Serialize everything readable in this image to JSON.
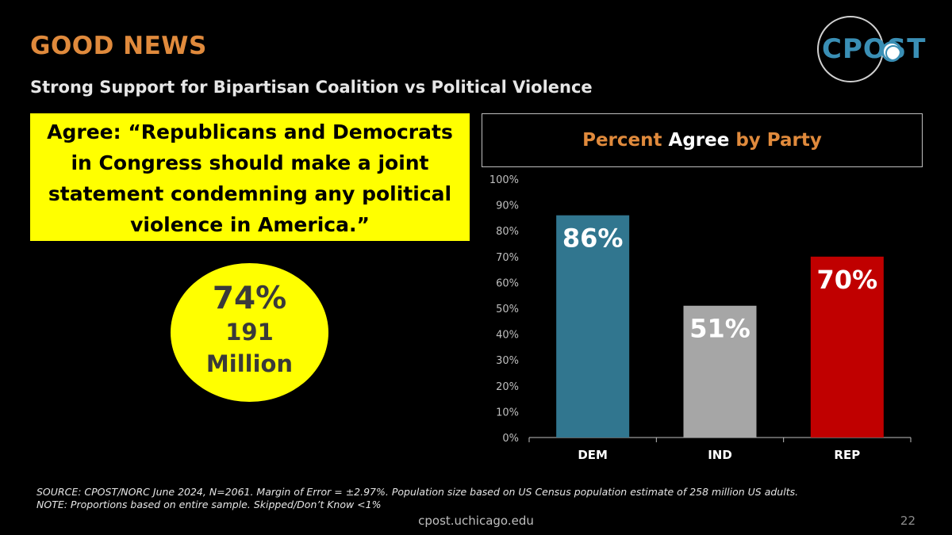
{
  "slide": {
    "heading": "GOOD NEWS",
    "subheading": "Strong Support for Bipartisan Coalition vs Political Violence",
    "quote_lines": [
      "Agree: “Republicans and Democrats",
      "in Congress should make a joint",
      "statement condemning any political",
      "violence in America.”"
    ],
    "stat": {
      "percent": "74%",
      "number": "191",
      "unit": "Million"
    },
    "logo_text": "CPOST",
    "source_line1": "SOURCE: CPOST/NORC June 2024, N=2061. Margin of Error = ±2.97%. Population size based on US Census population estimate of 258 million US adults.",
    "source_line2": "NOTE: Proportions based on entire sample. Skipped/Don’t Know <1%",
    "footer_url": "cpost.uchicago.edu",
    "page_number": "22"
  },
  "chart_title": {
    "part1": "Percent ",
    "part2": "Agree",
    "part3": " by Party"
  },
  "chart_data": {
    "type": "bar",
    "title": "Percent Agree by Party",
    "categories": [
      "DEM",
      "IND",
      "REP"
    ],
    "values": [
      86,
      51,
      70
    ],
    "data_labels": [
      "86%",
      "51%",
      "70%"
    ],
    "colors": [
      "#31768f",
      "#a6a6a6",
      "#c00000"
    ],
    "ylim": [
      0,
      100
    ],
    "yticks": [
      0,
      10,
      20,
      30,
      40,
      50,
      60,
      70,
      80,
      90,
      100
    ],
    "ytick_labels": [
      "0%",
      "10%",
      "20%",
      "30%",
      "40%",
      "50%",
      "60%",
      "70%",
      "80%",
      "90%",
      "100%"
    ],
    "grid": false,
    "legend": "none"
  }
}
